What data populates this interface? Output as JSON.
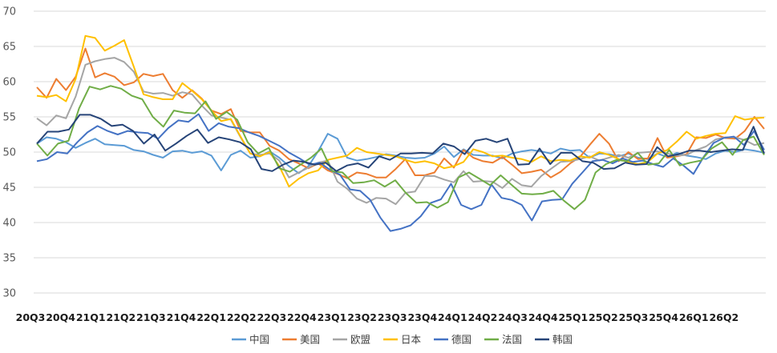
{
  "chart_data": {
    "type": "line",
    "title": "",
    "xlabel": "",
    "ylabel": "",
    "ylim": [
      30,
      70
    ],
    "yticks": [
      30,
      35,
      40,
      45,
      50,
      55,
      60,
      65,
      70
    ],
    "grid": "horizontal",
    "legend_position": "bottom",
    "x_tick_labels": [
      "20Q3",
      "20Q4",
      "21Q1",
      "21Q2",
      "21Q3",
      "21Q4",
      "22Q1",
      "22Q2",
      "22Q3",
      "22Q4",
      "23Q1",
      "23Q2",
      "23Q3",
      "23Q4",
      "24Q1",
      "24Q2",
      "24Q3",
      "24Q4",
      "25Q1",
      "25Q2",
      "25Q3",
      "25Q4",
      "26Q1",
      "26Q2"
    ],
    "series": [
      {
        "name": "中国",
        "color": "#5b9bd5",
        "values": [
          51.2,
          52.1,
          51.9,
          51.4,
          50.6,
          51.3,
          51.9,
          51.1,
          51.0,
          50.9,
          50.3,
          50.1,
          49.6,
          49.2,
          50.1,
          50.2,
          49.9,
          50.1,
          49.5,
          47.4,
          49.6,
          50.2,
          49.2,
          49.4,
          50.1,
          49.2,
          48.0,
          47.0,
          48.0,
          50.1,
          52.6,
          51.9,
          49.2,
          48.8,
          49.0,
          49.3,
          49.7,
          49.5,
          49.2,
          49.1,
          49.2,
          49.8,
          50.8,
          49.3,
          50.4,
          49.6,
          49.5,
          49.5,
          49.1,
          49.8,
          50.1,
          50.3,
          50.1,
          49.8,
          50.5,
          50.2,
          50.3,
          49.2,
          49.8,
          49.7,
          49.4,
          49.8,
          49.2,
          49.0,
          49.8,
          49.3,
          49.9,
          49.5,
          49.3,
          49.0,
          49.8,
          50.2,
          50.0,
          50.4,
          50.2,
          49.9
        ]
      },
      {
        "name": "美国",
        "color": "#ed7d31",
        "values": [
          59.2,
          57.7,
          60.4,
          58.8,
          60.7,
          64.7,
          60.6,
          61.2,
          60.7,
          59.5,
          59.9,
          61.1,
          60.8,
          61.1,
          58.8,
          57.7,
          58.8,
          57.6,
          55.9,
          55.4,
          56.1,
          53.0,
          52.8,
          52.8,
          50.9,
          50.2,
          49.0,
          48.4,
          47.7,
          48.4,
          47.4,
          46.9,
          46.3,
          47.1,
          46.9,
          46.4,
          46.4,
          47.6,
          49.0,
          46.7,
          46.7,
          47.1,
          49.1,
          47.8,
          50.3,
          49.2,
          48.7,
          48.5,
          49.3,
          48.2,
          47.0,
          47.2,
          47.5,
          46.4,
          47.2,
          48.4,
          49.3,
          51.0,
          52.6,
          51.2,
          48.7,
          50.0,
          49.0,
          49.1,
          52.0,
          49.2,
          49.4,
          49.7,
          52.1,
          52.0,
          52.5,
          52.0,
          51.9,
          53.0,
          55.0,
          53.3
        ]
      },
      {
        "name": "欧盟",
        "color": "#a5a5a5",
        "values": [
          54.8,
          53.8,
          55.2,
          54.8,
          57.9,
          62.4,
          62.9,
          63.2,
          63.4,
          62.8,
          61.4,
          58.6,
          58.3,
          58.4,
          58.0,
          58.5,
          58.2,
          56.6,
          55.2,
          54.9,
          54.6,
          52.1,
          49.8,
          49.6,
          49.8,
          48.8,
          46.4,
          47.1,
          47.8,
          48.5,
          48.8,
          45.8,
          44.8,
          43.4,
          42.8,
          43.5,
          43.4,
          42.6,
          44.2,
          44.4,
          46.6,
          46.6,
          46.1,
          45.7,
          47.3,
          45.8,
          45.9,
          45.8,
          44.9,
          46.2,
          45.3,
          45.1,
          46.6,
          47.6,
          48.6,
          48.7,
          49.0,
          49.4,
          48.8,
          49.2,
          49.6,
          49.2,
          49.9,
          50.0,
          50.1,
          49.8,
          49.5,
          49.6,
          50.3,
          50.8,
          51.8,
          52.1,
          52.1,
          51.7,
          51.0,
          51.3
        ]
      },
      {
        "name": "日本",
        "color": "#ffc000",
        "values": [
          58.0,
          57.8,
          58.1,
          57.2,
          60.4,
          66.5,
          66.2,
          64.4,
          65.1,
          65.9,
          62.1,
          58.2,
          57.8,
          57.5,
          57.5,
          59.8,
          58.7,
          57.5,
          55.9,
          54.4,
          54.7,
          52.2,
          49.8,
          49.4,
          50.0,
          48.0,
          45.1,
          46.2,
          47.0,
          47.4,
          48.9,
          49.2,
          49.5,
          50.6,
          50.0,
          49.8,
          49.6,
          49.4,
          48.9,
          48.5,
          48.7,
          48.4,
          47.7,
          48.0,
          48.6,
          50.4,
          50.0,
          49.4,
          49.5,
          49.2,
          49.0,
          48.6,
          49.4,
          48.7,
          48.9,
          48.8,
          49.4,
          49.2,
          50.0,
          49.6,
          49.0,
          48.6,
          48.3,
          48.6,
          49.8,
          50.3,
          51.5,
          52.9,
          51.9,
          52.3,
          52.6,
          52.7,
          55.1,
          54.6,
          54.8,
          54.9
        ]
      },
      {
        "name": "德国",
        "color": "#4472c4",
        "values": [
          48.7,
          49.0,
          50.0,
          49.8,
          51.4,
          52.8,
          53.7,
          53.0,
          52.5,
          53.0,
          52.8,
          52.7,
          51.9,
          53.4,
          54.5,
          54.3,
          55.4,
          53.0,
          54.1,
          53.6,
          53.4,
          52.8,
          52.3,
          51.6,
          50.9,
          49.9,
          49.1,
          48.2,
          48.5,
          47.5,
          46.8,
          44.7,
          44.5,
          43.2,
          40.7,
          38.8,
          39.1,
          39.6,
          40.9,
          42.8,
          43.3,
          45.5,
          42.5,
          41.9,
          42.5,
          45.4,
          43.5,
          43.2,
          42.5,
          40.3,
          43.0,
          43.2,
          43.3,
          45.5,
          47.1,
          48.7,
          48.9,
          48.4,
          49.1,
          48.6,
          48.8,
          48.3,
          47.9,
          49.1,
          48.1,
          46.9,
          49.3,
          51.3,
          52.0,
          52.2,
          51.0,
          53.0,
          50.3
        ]
      },
      {
        "name": "法国",
        "color": "#70ad47",
        "values": [
          51.2,
          49.5,
          51.2,
          51.6,
          56.2,
          59.3,
          58.9,
          59.4,
          59.0,
          58.0,
          57.5,
          55.0,
          53.6,
          55.9,
          55.6,
          55.5,
          57.2,
          54.7,
          55.7,
          54.6,
          51.4,
          49.8,
          50.6,
          47.7,
          47.2,
          48.2,
          49.2,
          50.5,
          47.3,
          47.1,
          45.6,
          45.7,
          46.0,
          45.1,
          46.0,
          44.2,
          42.8,
          42.9,
          42.1,
          42.9,
          46.4,
          47.1,
          46.2,
          45.3,
          46.7,
          45.4,
          44.1,
          44.0,
          44.1,
          44.5,
          43.1,
          41.9,
          43.2,
          47.1,
          48.3,
          48.9,
          48.7,
          49.9,
          48.2,
          48.4,
          50.3,
          48.1,
          48.5,
          48.8,
          50.5,
          51.4,
          49.6,
          51.7,
          52.2,
          49.6
        ]
      },
      {
        "name": "韩国",
        "color": "#264478",
        "values": [
          51.2,
          52.9,
          52.9,
          53.2,
          55.3,
          55.3,
          54.7,
          53.7,
          53.9,
          53.0,
          51.2,
          52.5,
          50.2,
          51.2,
          52.3,
          53.2,
          51.3,
          52.1,
          51.8,
          51.4,
          50.4,
          47.6,
          47.3,
          48.2,
          48.8,
          48.6,
          48.2,
          48.5,
          47.3,
          48.1,
          48.4,
          47.8,
          49.4,
          48.9,
          49.8,
          49.8,
          49.9,
          49.8,
          51.2,
          50.8,
          49.7,
          51.6,
          51.9,
          51.4,
          51.9,
          48.2,
          48.3,
          50.5,
          48.3,
          49.9,
          49.9,
          48.7,
          48.5,
          47.6,
          47.7,
          48.5,
          48.2,
          48.3,
          50.7,
          49.4,
          49.7,
          50.2,
          50.2,
          50.0,
          50.2,
          50.4,
          50.3,
          53.6,
          49.8
        ]
      }
    ]
  }
}
